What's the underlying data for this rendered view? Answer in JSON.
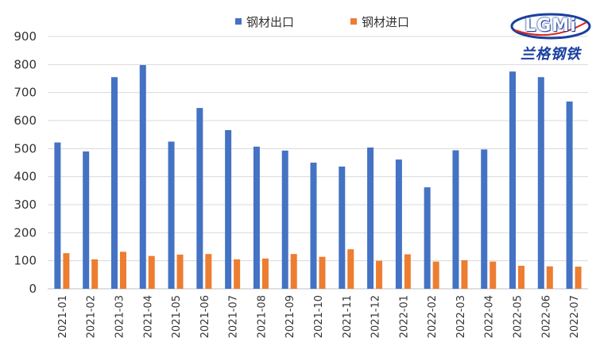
{
  "chart_data": {
    "type": "bar",
    "categories": [
      "2021-01",
      "2021-02",
      "2021-03",
      "2021-04",
      "2021-05",
      "2021-06",
      "2021-07",
      "2021-08",
      "2021-09",
      "2021-10",
      "2021-11",
      "2021-12",
      "2022-01",
      "2022-02",
      "2022-03",
      "2022-04",
      "2022-05",
      "2022-06",
      "2022-07"
    ],
    "series": [
      {
        "name": "钢材出口",
        "color": "#4472C4",
        "values": [
          522,
          490,
          755,
          798,
          525,
          645,
          566,
          507,
          493,
          450,
          436,
          504,
          461,
          362,
          494,
          497,
          775,
          755,
          668
        ]
      },
      {
        "name": "钢材进口",
        "color": "#ED7D31",
        "values": [
          127,
          105,
          132,
          117,
          122,
          124,
          105,
          108,
          124,
          114,
          141,
          100,
          123,
          97,
          102,
          97,
          82,
          80,
          79
        ]
      }
    ],
    "yticks": [
      0,
      100,
      200,
      300,
      400,
      500,
      600,
      700,
      800,
      900
    ],
    "ylim": [
      0,
      900
    ],
    "grid": true,
    "legend": "top-center"
  },
  "logo": {
    "word": "LGMi",
    "subtitle": "兰格钢铁",
    "colors": {
      "primary": "#1a3fa0",
      "accent": "#d8261c"
    }
  }
}
